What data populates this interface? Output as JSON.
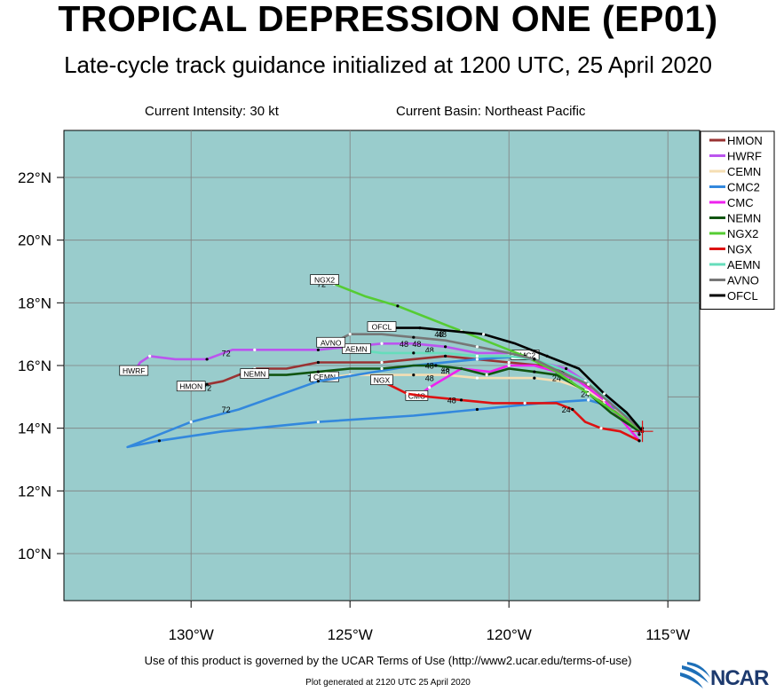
{
  "title": "TROPICAL DEPRESSION ONE (EP01)",
  "subtitle": "Late-cycle track guidance initialized at 1200 UTC, 25 April 2020",
  "current_intensity": "Current Intensity: 30 kt",
  "current_basin": "Current Basin: Northeast Pacific",
  "terms": "Use of this product is governed by the UCAR Terms of Use (http://www2.ucar.edu/terms-of-use)",
  "generated": "Plot generated at 2120 UTC   25 April 2020",
  "logo_text": "NCAR",
  "colors": {
    "ocean": "#99cccc",
    "grid": "#808080"
  },
  "axes": {
    "lon_range": [
      -134,
      -114
    ],
    "lat_range": [
      8.5,
      23.5
    ],
    "lon_ticks": [
      {
        "v": -130,
        "label": "130°W"
      },
      {
        "v": -125,
        "label": "125°W"
      },
      {
        "v": -120,
        "label": "120°W"
      },
      {
        "v": -115,
        "label": "115°W"
      }
    ],
    "lat_ticks": [
      {
        "v": 22,
        "label": "22°N"
      },
      {
        "v": 20,
        "label": "20°N"
      },
      {
        "v": 18,
        "label": "18°N"
      },
      {
        "v": 16,
        "label": "16°N"
      },
      {
        "v": 14,
        "label": "14°N"
      },
      {
        "v": 12,
        "label": "12°N"
      },
      {
        "v": 10,
        "label": "10°N"
      }
    ]
  },
  "storm_position": {
    "lon": -115.8,
    "lat": 13.9
  },
  "chart_data": {
    "type": "map-track",
    "legend_placement": "top-right",
    "models": [
      {
        "name": "HMON",
        "color": "#993333",
        "label": "HMON",
        "points": [
          [
            -115.9,
            13.9
          ],
          [
            -116.5,
            14.4
          ],
          [
            -117.0,
            14.8
          ],
          [
            -117.6,
            15.4
          ],
          [
            -118.3,
            15.8
          ],
          [
            -119.0,
            16.0
          ],
          [
            -120.0,
            16.1
          ],
          [
            -121.0,
            16.2
          ],
          [
            -122.0,
            16.3
          ],
          [
            -123.0,
            16.2
          ],
          [
            -124.0,
            16.1
          ],
          [
            -125.0,
            16.1
          ],
          [
            -126.0,
            16.1
          ],
          [
            -127.0,
            15.9
          ],
          [
            -128.0,
            15.9
          ],
          [
            -129.0,
            15.5
          ],
          [
            -129.5,
            15.4
          ],
          [
            -130.0,
            15.3
          ]
        ],
        "labels": [
          [
            "24",
            -118.0,
            15.5
          ],
          [
            "48",
            -122.0,
            15.7
          ],
          [
            "72",
            -129.5,
            15.2
          ]
        ]
      },
      {
        "name": "HWRF",
        "color": "#bb55ee",
        "label": "HWRF",
        "points": [
          [
            -115.9,
            13.8
          ],
          [
            -116.3,
            14.4
          ],
          [
            -117.0,
            15.0
          ],
          [
            -117.6,
            15.5
          ],
          [
            -118.2,
            15.9
          ],
          [
            -119.0,
            16.1
          ],
          [
            -120.0,
            16.4
          ],
          [
            -121.0,
            16.4
          ],
          [
            -122.0,
            16.6
          ],
          [
            -123.0,
            16.7
          ],
          [
            -124.0,
            16.7
          ],
          [
            -125.0,
            16.6
          ],
          [
            -126.0,
            16.5
          ],
          [
            -127.0,
            16.5
          ],
          [
            -128.0,
            16.5
          ],
          [
            -128.7,
            16.5
          ],
          [
            -129.5,
            16.2
          ],
          [
            -130.5,
            16.2
          ],
          [
            -131.3,
            16.3
          ],
          [
            -131.6,
            16.1
          ],
          [
            -131.8,
            15.8
          ]
        ],
        "labels": [
          [
            "48",
            -122.5,
            16.4
          ],
          [
            "72",
            -128.9,
            16.3
          ]
        ]
      },
      {
        "name": "CEMN",
        "color": "#f5deb3",
        "label": "CEMN",
        "points": [
          [
            -115.8,
            13.9
          ],
          [
            -116.6,
            14.6
          ],
          [
            -117.5,
            15.2
          ],
          [
            -118.4,
            15.5
          ],
          [
            -119.2,
            15.6
          ],
          [
            -120.0,
            15.6
          ],
          [
            -121.0,
            15.6
          ],
          [
            -122.0,
            15.7
          ],
          [
            -123.0,
            15.7
          ],
          [
            -124.0,
            15.7
          ],
          [
            -125.0,
            15.7
          ],
          [
            -125.8,
            15.6
          ]
        ],
        "labels": [
          [
            "24",
            -118.5,
            15.5
          ],
          [
            "48",
            -122.5,
            15.5
          ],
          [
            "72",
            -126.2,
            15.5
          ]
        ]
      },
      {
        "name": "CMC2",
        "color": "#3388dd",
        "label": "CMC2",
        "points": [
          [
            -115.8,
            13.9
          ],
          [
            -116.5,
            14.6
          ],
          [
            -117.5,
            14.9
          ],
          [
            -119.0,
            14.8
          ],
          [
            -121.0,
            14.6
          ],
          [
            -123.0,
            14.4
          ],
          [
            -126.0,
            14.2
          ],
          [
            -129.0,
            13.9
          ],
          [
            -131.0,
            13.6
          ],
          [
            -132.0,
            13.4
          ],
          [
            -130.0,
            14.2
          ],
          [
            -128.5,
            14.6
          ],
          [
            -126.0,
            15.5
          ],
          [
            -123.0,
            16.0
          ],
          [
            -121.0,
            16.2
          ],
          [
            -119.5,
            16.3
          ]
        ],
        "labels": [
          [
            "24",
            -117.6,
            15.0
          ],
          [
            "72",
            -128.9,
            14.5
          ]
        ]
      },
      {
        "name": "CMC",
        "color": "#ee22ee",
        "label": "CMC",
        "points": [
          [
            -115.9,
            13.6
          ],
          [
            -116.4,
            14.2
          ],
          [
            -117.0,
            14.9
          ],
          [
            -117.8,
            15.5
          ],
          [
            -118.5,
            15.8
          ],
          [
            -119.2,
            16.0
          ],
          [
            -120.0,
            16.0
          ],
          [
            -120.6,
            15.8
          ],
          [
            -121.5,
            15.9
          ],
          [
            -122.0,
            15.6
          ],
          [
            -122.5,
            15.3
          ],
          [
            -122.9,
            15.0
          ]
        ],
        "labels": [
          [
            "48",
            -122.0,
            15.8
          ]
        ]
      },
      {
        "name": "NEMN",
        "color": "#115511",
        "label": "NEMN",
        "points": [
          [
            -115.9,
            13.9
          ],
          [
            -116.8,
            14.5
          ],
          [
            -117.6,
            15.2
          ],
          [
            -118.5,
            15.7
          ],
          [
            -119.2,
            15.8
          ],
          [
            -120.0,
            15.9
          ],
          [
            -120.7,
            15.7
          ],
          [
            -121.5,
            15.9
          ],
          [
            -122.3,
            16.0
          ],
          [
            -123.0,
            16.0
          ],
          [
            -124.0,
            15.9
          ],
          [
            -125.0,
            15.9
          ],
          [
            -126.0,
            15.8
          ],
          [
            -127.0,
            15.7
          ],
          [
            -128.0,
            15.7
          ]
        ],
        "labels": [
          [
            "48",
            -122.5,
            15.9
          ]
        ]
      },
      {
        "name": "NGX2",
        "color": "#55cc33",
        "label": "NGX2",
        "points": [
          [
            -115.8,
            13.9
          ],
          [
            -116.5,
            14.4
          ],
          [
            -117.5,
            15.1
          ],
          [
            -118.5,
            15.8
          ],
          [
            -119.5,
            16.3
          ],
          [
            -120.5,
            16.7
          ],
          [
            -121.5,
            17.1
          ],
          [
            -122.5,
            17.5
          ],
          [
            -123.5,
            17.9
          ],
          [
            -124.5,
            18.2
          ],
          [
            -125.5,
            18.6
          ],
          [
            -125.8,
            18.7
          ]
        ],
        "labels": [
          [
            "48",
            -122.2,
            16.9
          ],
          [
            "72",
            -125.9,
            18.5
          ]
        ]
      },
      {
        "name": "NGX",
        "color": "#dd1111",
        "label": "NGX",
        "points": [
          [
            -115.9,
            13.6
          ],
          [
            -116.5,
            13.9
          ],
          [
            -117.1,
            14.0
          ],
          [
            -117.6,
            14.2
          ],
          [
            -118.0,
            14.6
          ],
          [
            -118.5,
            14.8
          ],
          [
            -119.5,
            14.8
          ],
          [
            -120.5,
            14.8
          ],
          [
            -121.5,
            14.9
          ],
          [
            -122.5,
            15.0
          ],
          [
            -123.2,
            15.1
          ],
          [
            -123.6,
            15.3
          ],
          [
            -124.0,
            15.5
          ]
        ],
        "labels": [
          [
            "24",
            -118.2,
            14.5
          ],
          [
            "48",
            -121.8,
            14.8
          ]
        ]
      },
      {
        "name": "AEMN",
        "color": "#66ddbb",
        "label": "AEMN",
        "points": [
          [
            -115.8,
            14.0
          ],
          [
            -116.8,
            14.9
          ],
          [
            -117.6,
            15.5
          ],
          [
            -118.4,
            15.9
          ],
          [
            -119.2,
            16.2
          ],
          [
            -120.0,
            16.3
          ],
          [
            -121.0,
            16.3
          ],
          [
            -122.0,
            16.4
          ],
          [
            -123.0,
            16.4
          ],
          [
            -124.0,
            16.4
          ],
          [
            -124.8,
            16.5
          ]
        ],
        "labels": [
          [
            "48",
            -122.9,
            16.6
          ]
        ]
      },
      {
        "name": "AVNO",
        "color": "#777777",
        "label": "AVNO",
        "points": [
          [
            -115.8,
            13.9
          ],
          [
            -116.7,
            14.7
          ],
          [
            -117.5,
            15.4
          ],
          [
            -118.4,
            15.8
          ],
          [
            -119.2,
            16.2
          ],
          [
            -120.0,
            16.4
          ],
          [
            -121.0,
            16.6
          ],
          [
            -122.0,
            16.8
          ],
          [
            -123.0,
            16.9
          ],
          [
            -124.0,
            17.0
          ],
          [
            -125.0,
            17.0
          ],
          [
            -125.6,
            16.7
          ]
        ],
        "labels": [
          [
            "48",
            -123.3,
            16.6
          ]
        ]
      },
      {
        "name": "OFCL",
        "color": "#000000",
        "label": "OFCL",
        "points": [
          [
            -115.8,
            13.9
          ],
          [
            -116.3,
            14.5
          ],
          [
            -117.0,
            15.1
          ],
          [
            -117.8,
            15.9
          ],
          [
            -118.8,
            16.3
          ],
          [
            -119.8,
            16.7
          ],
          [
            -120.8,
            17.0
          ],
          [
            -121.8,
            17.1
          ],
          [
            -122.8,
            17.2
          ],
          [
            -124.0,
            17.2
          ]
        ],
        "labels": [
          [
            "48",
            -122.1,
            16.9
          ]
        ]
      }
    ]
  }
}
